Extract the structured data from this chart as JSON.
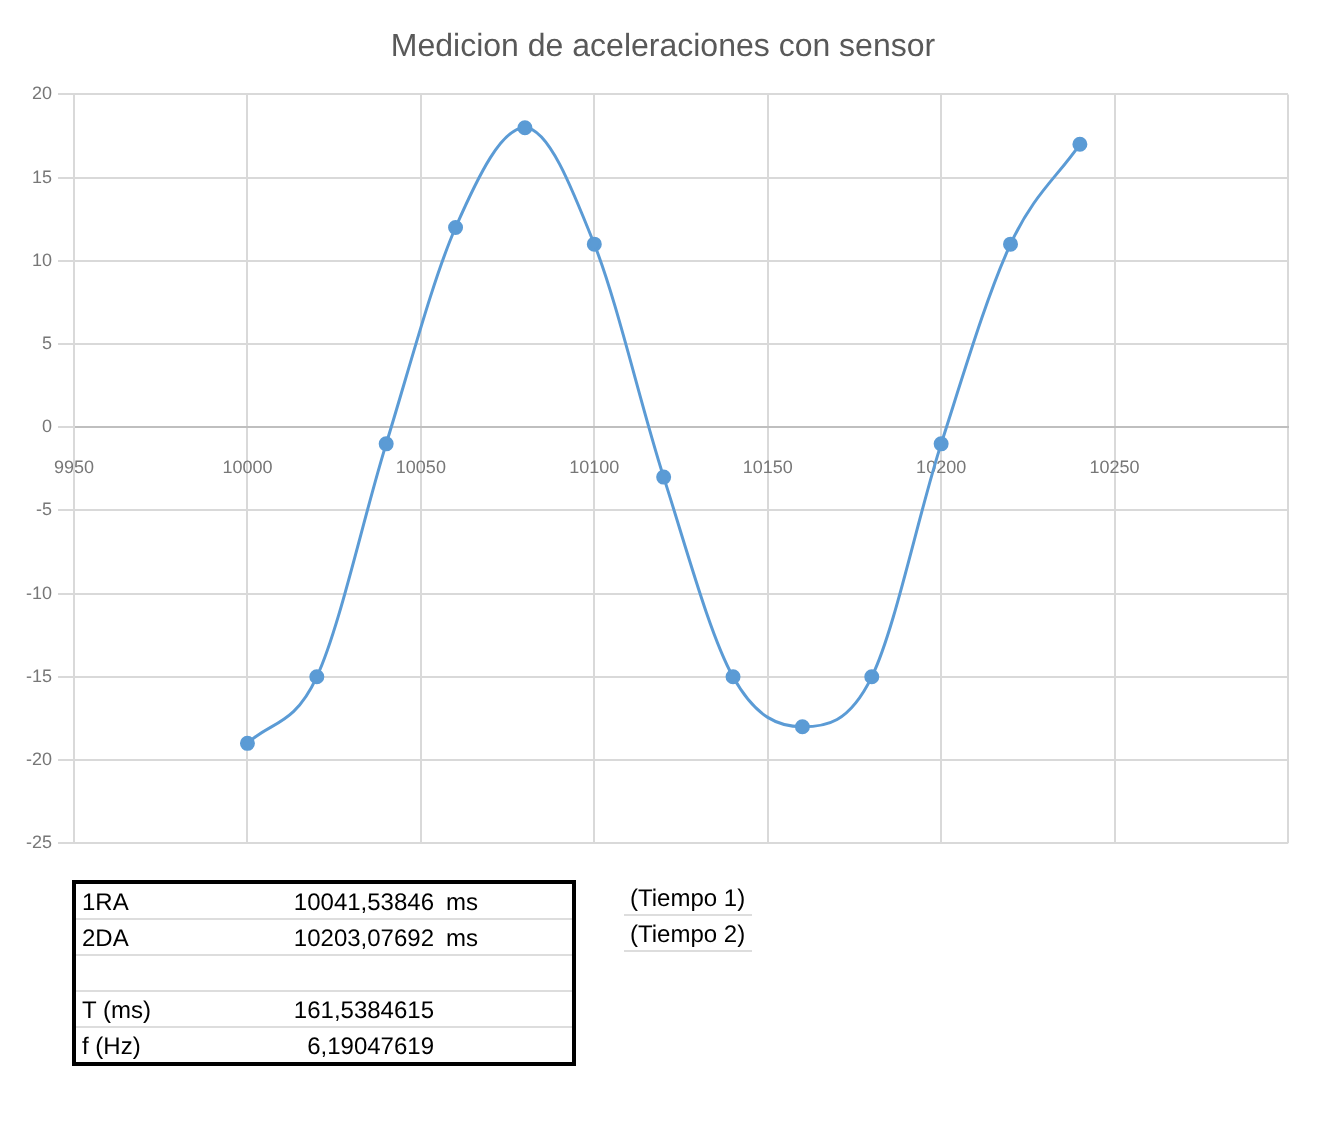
{
  "chart_data": {
    "type": "line",
    "title": "Medicion de aceleraciones con sensor",
    "x": [
      10000,
      10020,
      10040,
      10060,
      10080,
      10100,
      10120,
      10140,
      10160,
      10180,
      10200,
      10220,
      10240
    ],
    "series": [
      {
        "color": "#5b9bd5",
        "values": [
          -19,
          -15,
          -1,
          12,
          18,
          11,
          -3,
          -15,
          -18,
          -15,
          -1,
          11,
          17
        ]
      }
    ],
    "xlim": [
      9950,
      10300
    ],
    "xticks": [
      9950,
      10000,
      10050,
      10100,
      10150,
      10200,
      10250,
      {
        "value": 10300,
        "label": null
      }
    ],
    "ylim": [
      -25,
      20
    ],
    "yticks": [
      -25,
      -20,
      -15,
      -10,
      -5,
      0,
      5,
      10,
      15,
      20
    ],
    "grid": true,
    "legend": false,
    "marker": "circle",
    "line_style": "solid",
    "annotations": [
      "1RA",
      "10041,53846",
      "ms",
      "(Tiempo 1)",
      "2DA",
      "10203,07692",
      "ms",
      "(Tiempo 2)",
      "T (ms)",
      "161,5384615",
      "f (Hz)",
      "6,19047619"
    ]
  }
}
